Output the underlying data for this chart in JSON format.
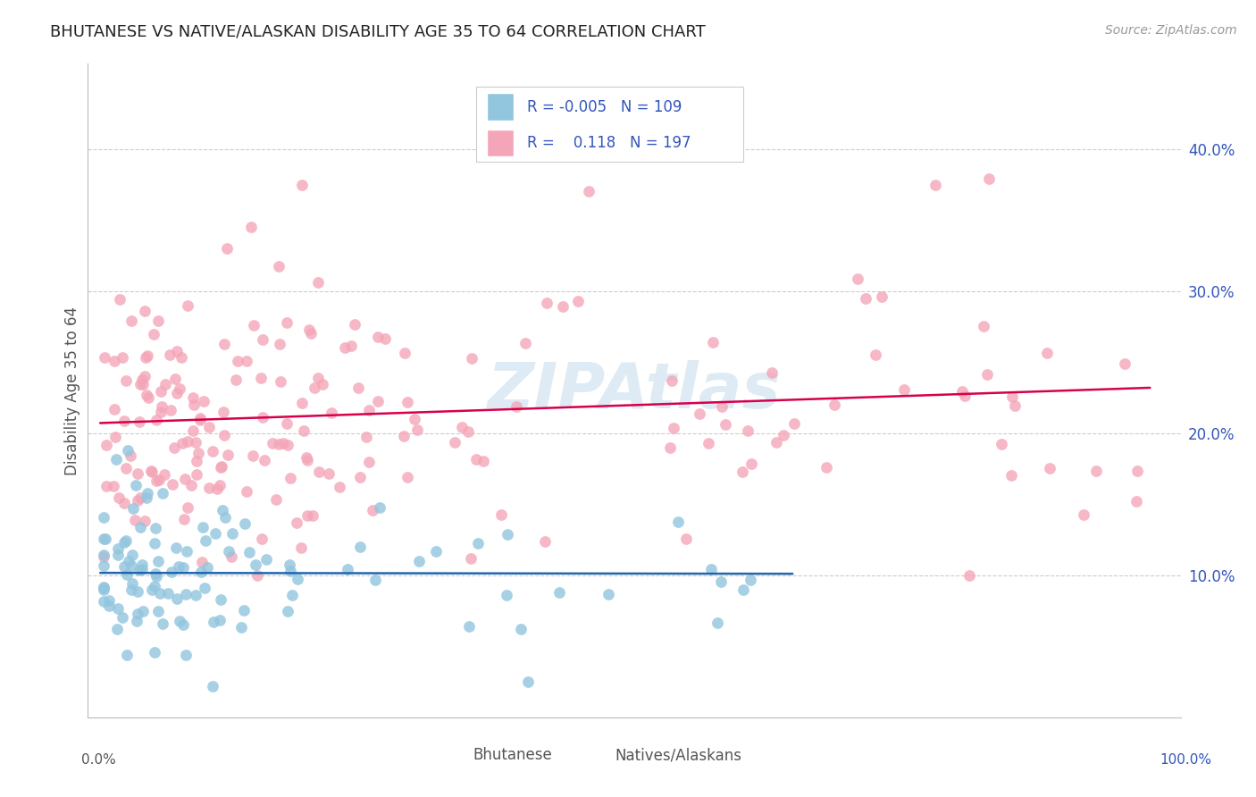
{
  "title": "BHUTANESE VS NATIVE/ALASKAN DISABILITY AGE 35 TO 64 CORRELATION CHART",
  "source": "Source: ZipAtlas.com",
  "ylabel": "Disability Age 35 to 64",
  "ylim": [
    0.0,
    0.46
  ],
  "xlim": [
    -0.01,
    1.06
  ],
  "yticks": [
    0.1,
    0.2,
    0.3,
    0.4
  ],
  "ytick_labels": [
    "10.0%",
    "20.0%",
    "30.0%",
    "40.0%"
  ],
  "blue_color": "#92c5de",
  "pink_color": "#f4a6b8",
  "blue_line_color": "#2166ac",
  "pink_line_color": "#d6004c",
  "background_color": "#ffffff",
  "watermark": "ZIPAtlas",
  "legend_text_color": "#3355bb",
  "grid_color": "#cccccc",
  "title_color": "#222222",
  "label_color": "#555555",
  "tick_color": "#3355bb"
}
